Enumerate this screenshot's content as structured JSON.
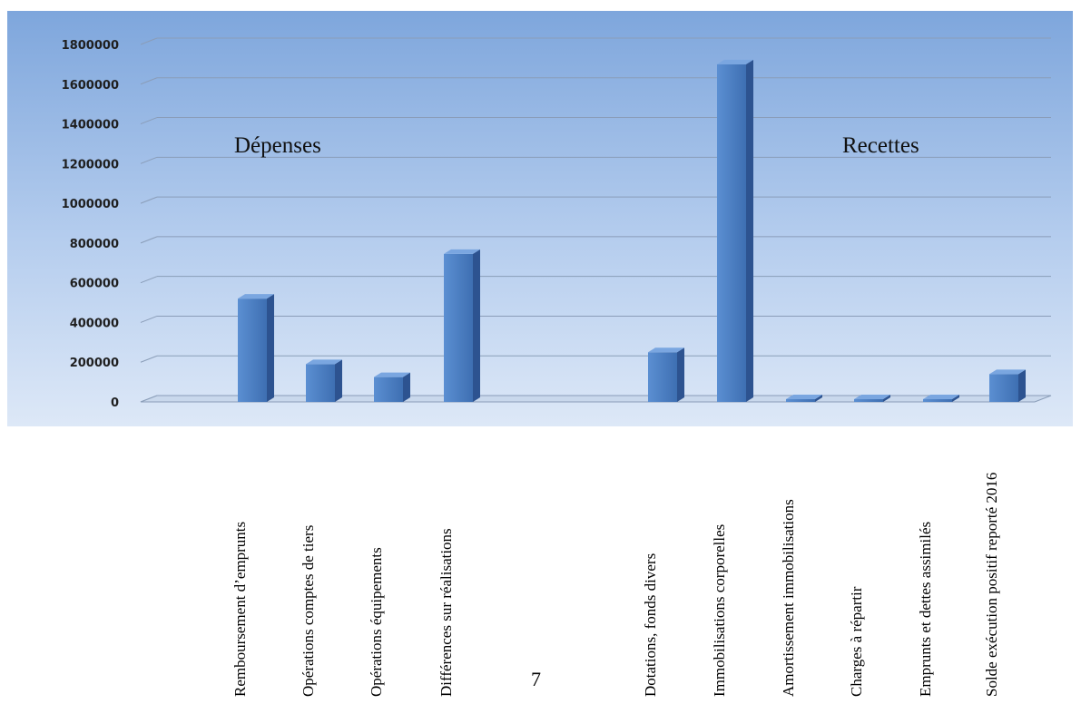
{
  "chart_data": {
    "type": "bar",
    "categories": [
      "Remboursement d’emprunts",
      "Opérations comptes de tiers",
      "Opérations équipements",
      "Différences sur réalisations",
      "",
      "Dotations, fonds divers",
      "Immobilisations corporelles",
      "Amortissement immobilisations",
      "Charges à répartir",
      "Emprunts et dettes assimilés",
      "Solde exécution positif reporté 2016"
    ],
    "values": [
      520000,
      190000,
      125000,
      745000,
      0,
      250000,
      1700000,
      5000,
      2000,
      5000,
      140000
    ],
    "ylim": [
      0,
      1800000
    ],
    "yticks": [
      "0",
      "200000",
      "400000",
      "600000",
      "800000",
      "1000000",
      "1200000",
      "1400000",
      "1600000",
      "1800000"
    ],
    "group_labels": [
      "Dépenses",
      "Recettes"
    ],
    "grid": true,
    "bar_color": "#4a7ec4"
  },
  "page_number": "7"
}
